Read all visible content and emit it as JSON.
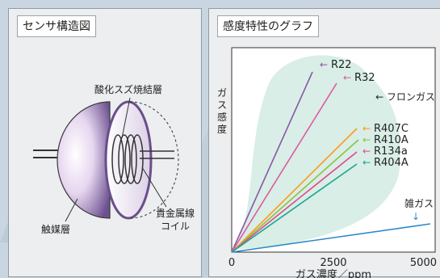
{
  "sensor_panel": {
    "title": "センサ構造図",
    "labels": {
      "oxide_layer": "酸化スズ焼結層",
      "coil_line1": "貴金属線",
      "coil_line2": "コイル",
      "catalyst": "触媒層"
    }
  },
  "graph_panel": {
    "title": "感度特性のグラフ"
  },
  "chart_data": {
    "type": "line",
    "ylabel": "ガス感度",
    "xlabel": "ガス濃度／ppm",
    "x_ticks": [
      "0",
      "2500",
      "5000"
    ],
    "xlim": [
      0,
      5000
    ],
    "group_label": "フロンガス",
    "series": [
      {
        "name": "R22",
        "color": "#8a55a8",
        "slope": 10.0
      },
      {
        "name": "R32",
        "color": "#dd5aa0",
        "slope": 6.2
      },
      {
        "name": "R407C",
        "color": "#ff9a1a",
        "slope": 2.6
      },
      {
        "name": "R410A",
        "color": "#8cc23f",
        "slope": 2.25
      },
      {
        "name": "R134a",
        "color": "#e04890",
        "slope": 2.0
      },
      {
        "name": "R404A",
        "color": "#1aa58e",
        "slope": 1.6
      },
      {
        "name": "雑ガス",
        "color": "#2a8ac8",
        "slope": 0.1
      }
    ]
  }
}
